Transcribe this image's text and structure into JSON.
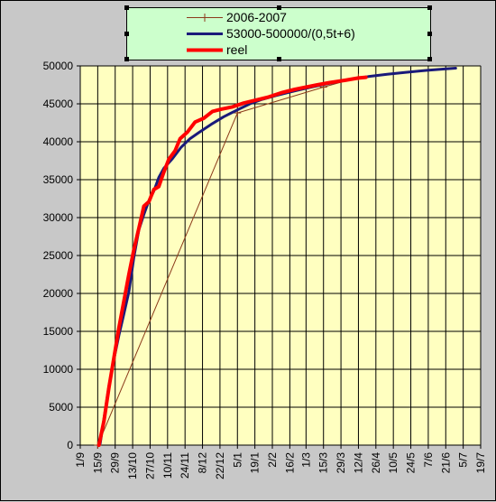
{
  "chart_data": {
    "type": "line",
    "x_axis": {
      "tick_labels": [
        "1/9",
        "15/9",
        "29/9",
        "13/10",
        "27/10",
        "10/11",
        "24/11",
        "8/12",
        "22/12",
        "5/1",
        "19/1",
        "2/2",
        "16/2",
        "1/3",
        "15/3",
        "29/3",
        "12/4",
        "26/4",
        "10/5",
        "24/5",
        "7/6",
        "21/6",
        "5/7",
        "19/7"
      ],
      "range": [
        "1/9",
        "19/7"
      ]
    },
    "y_axis": {
      "tick_labels": [
        "0",
        "5000",
        "10000",
        "15000",
        "20000",
        "25000",
        "30000",
        "35000",
        "40000",
        "45000",
        "50000"
      ],
      "ylim": [
        0,
        50000
      ]
    },
    "grid": true,
    "legend_position": "top",
    "series": [
      {
        "name": "2006-2007",
        "color": "#8b3a1a",
        "marker": "plus",
        "points": [
          [
            "15/9",
            0
          ],
          [
            "5/1",
            43800
          ],
          [
            "15/3",
            47200
          ],
          [
            "12/4",
            48500
          ]
        ]
      },
      {
        "name": "53000-500000/(0,5t+6)",
        "color": "#1a1a7a",
        "points": [
          [
            "17/9",
            200
          ],
          [
            "20/9",
            3500
          ],
          [
            "24/9",
            7800
          ],
          [
            "28/9",
            11300
          ],
          [
            "2/10",
            14500
          ],
          [
            "6/10",
            17300
          ],
          [
            "10/10",
            20200
          ],
          [
            "14/10",
            24800
          ],
          [
            "18/10",
            28400
          ],
          [
            "22/10",
            30400
          ],
          [
            "26/10",
            32200
          ],
          [
            "30/10",
            33500
          ],
          [
            "3/11",
            35300
          ],
          [
            "7/11",
            36500
          ],
          [
            "14/11",
            37800
          ],
          [
            "21/11",
            39300
          ],
          [
            "28/11",
            40400
          ],
          [
            "5/12",
            41200
          ],
          [
            "15/12",
            42300
          ],
          [
            "25/12",
            43300
          ],
          [
            "5/1",
            44200
          ],
          [
            "15/1",
            45000
          ],
          [
            "25/1",
            45600
          ],
          [
            "5/2",
            46100
          ],
          [
            "20/2",
            46700
          ],
          [
            "5/3",
            47200
          ],
          [
            "20/3",
            47700
          ],
          [
            "5/4",
            48200
          ],
          [
            "20/4",
            48600
          ],
          [
            "5/5",
            48900
          ],
          [
            "20/5",
            49150
          ],
          [
            "5/6",
            49400
          ],
          [
            "20/6",
            49600
          ],
          [
            "29/6",
            49700
          ]
        ]
      },
      {
        "name": "reel",
        "color": "#ff0000",
        "points": [
          [
            "16/9",
            0
          ],
          [
            "20/9",
            3200
          ],
          [
            "24/9",
            7600
          ],
          [
            "28/9",
            11500
          ],
          [
            "2/10",
            15500
          ],
          [
            "6/10",
            19000
          ],
          [
            "10/10",
            22500
          ],
          [
            "14/10",
            25800
          ],
          [
            "18/10",
            28600
          ],
          [
            "22/10",
            31500
          ],
          [
            "26/10",
            32100
          ],
          [
            "30/10",
            33700
          ],
          [
            "3/11",
            34100
          ],
          [
            "7/11",
            36000
          ],
          [
            "11/11",
            37700
          ],
          [
            "16/11",
            38800
          ],
          [
            "20/11",
            40400
          ],
          [
            "26/11",
            41300
          ],
          [
            "2/12",
            42600
          ],
          [
            "9/12",
            43100
          ],
          [
            "16/12",
            44000
          ],
          [
            "23/12",
            44300
          ],
          [
            "1/1",
            44600
          ],
          [
            "10/1",
            45100
          ],
          [
            "20/1",
            45500
          ],
          [
            "30/1",
            45900
          ],
          [
            "10/2",
            46500
          ],
          [
            "20/2",
            46900
          ],
          [
            "1/3",
            47200
          ],
          [
            "10/3",
            47500
          ],
          [
            "20/3",
            47800
          ],
          [
            "1/4",
            48100
          ],
          [
            "12/4",
            48400
          ],
          [
            "18/4",
            48500
          ]
        ]
      }
    ]
  },
  "colors": {
    "plot_bg": "#ffffc0",
    "frame_bg": "#c8c8c8",
    "grid": "#000000",
    "legend_bg": "#ccffcc"
  }
}
